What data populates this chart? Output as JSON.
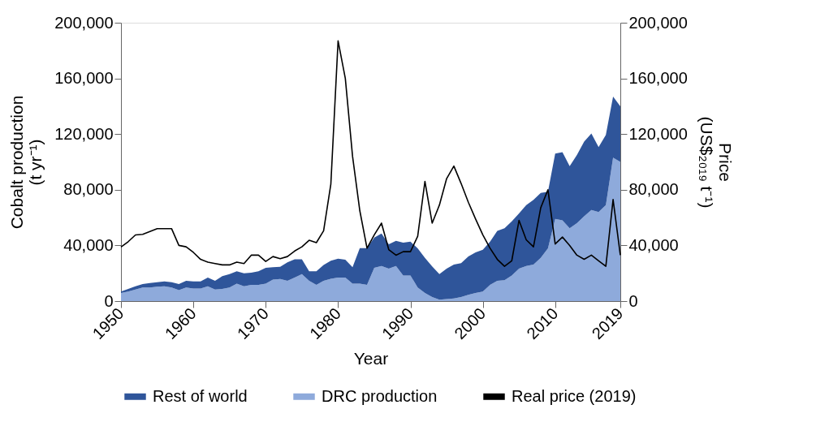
{
  "chart_data": {
    "type": "area",
    "stacked": true,
    "xlabel": "Year",
    "ylabel": "Cobalt production (t yr⁻¹)",
    "y2label": "Price (US$₂₀₁₉ t⁻¹)",
    "x": [
      1950,
      1951,
      1952,
      1953,
      1954,
      1955,
      1956,
      1957,
      1958,
      1959,
      1960,
      1961,
      1962,
      1963,
      1964,
      1965,
      1966,
      1967,
      1968,
      1969,
      1970,
      1971,
      1972,
      1973,
      1974,
      1975,
      1976,
      1977,
      1978,
      1979,
      1980,
      1981,
      1982,
      1983,
      1984,
      1985,
      1986,
      1987,
      1988,
      1989,
      1990,
      1991,
      1992,
      1993,
      1994,
      1995,
      1996,
      1997,
      1998,
      1999,
      2000,
      2001,
      2002,
      2003,
      2004,
      2005,
      2006,
      2007,
      2008,
      2009,
      2010,
      2011,
      2012,
      2013,
      2014,
      2015,
      2016,
      2017,
      2018,
      2019
    ],
    "series": [
      {
        "name": "DRC production",
        "color": "#8eaadb",
        "values": [
          5800,
          6800,
          8300,
          9700,
          9700,
          10300,
          10700,
          9700,
          7800,
          9700,
          9100,
          9100,
          10700,
          8300,
          8700,
          9700,
          12600,
          10700,
          11700,
          11700,
          12600,
          15500,
          15900,
          14600,
          16900,
          19400,
          14600,
          11700,
          14600,
          16100,
          16900,
          16900,
          12600,
          12600,
          11700,
          23900,
          25200,
          23300,
          25200,
          18400,
          18400,
          9700,
          5800,
          2900,
          1000,
          1400,
          1900,
          2900,
          4500,
          5800,
          6800,
          11700,
          14600,
          15000,
          18400,
          23300,
          25200,
          26200,
          31000,
          37900,
          59000,
          58000,
          52400,
          56000,
          61000,
          65400,
          64000,
          69000,
          103000,
          100000
        ]
      },
      {
        "name": "Rest of world",
        "color": "#2f559a",
        "values": [
          1000,
          1900,
          2400,
          2500,
          3300,
          3300,
          3500,
          3900,
          4400,
          4900,
          5100,
          5100,
          6200,
          6300,
          9300,
          9700,
          8800,
          9300,
          8700,
          9700,
          11300,
          8800,
          8800,
          13200,
          13100,
          10600,
          6800,
          9700,
          11400,
          12900,
          13600,
          12800,
          11700,
          25400,
          26300,
          21700,
          23300,
          17500,
          18100,
          23600,
          24300,
          28200,
          25200,
          22100,
          18400,
          21900,
          24300,
          24300,
          27500,
          29200,
          30100,
          31000,
          35900,
          37400,
          38900,
          39700,
          43800,
          46600,
          46700,
          40700,
          47000,
          49000,
          44600,
          49000,
          53600,
          55000,
          46700,
          50400,
          44000,
          40000
        ]
      },
      {
        "name": "Real price (2019)",
        "type": "line",
        "axis": "y2",
        "color": "#000000",
        "values": [
          38800,
          42700,
          47500,
          48000,
          50000,
          52000,
          52000,
          52000,
          40000,
          39000,
          35000,
          30000,
          28000,
          27000,
          26000,
          26000,
          28000,
          27000,
          33000,
          33000,
          28500,
          32000,
          30500,
          32000,
          36000,
          39000,
          43700,
          42000,
          50500,
          84000,
          187000,
          160000,
          104000,
          65000,
          38000,
          47600,
          56000,
          37000,
          33000,
          35500,
          35500,
          46600,
          86000,
          56000,
          69000,
          88000,
          97000,
          84500,
          71000,
          59000,
          47600,
          38000,
          30000,
          25000,
          29000,
          58000,
          44000,
          39000,
          67000,
          80000,
          41000,
          46000,
          40000,
          33000,
          30000,
          33000,
          29000,
          25000,
          73000,
          33000
        ]
      }
    ],
    "xlim": [
      1950,
      2019
    ],
    "xticks": [
      1950,
      1960,
      1970,
      1980,
      1990,
      2000,
      2010,
      2019
    ],
    "ylim": [
      0,
      200000
    ],
    "yticks": [
      0,
      {
        "value": 40000,
        "label": "40,000"
      },
      {
        "value": 80000,
        "label": "80,000"
      },
      {
        "value": 120000,
        "label": "120,000"
      },
      {
        "value": 160000,
        "label": "160,000"
      },
      {
        "value": 200000,
        "label": "200,000"
      }
    ],
    "y2lim": [
      0,
      200000
    ],
    "y2ticks": [
      0,
      {
        "value": 40000,
        "label": "40,000"
      },
      {
        "value": 80000,
        "label": "80,000"
      },
      {
        "value": 120000,
        "label": "120,000"
      },
      {
        "value": 160000,
        "label": "160,000"
      },
      {
        "value": 200000,
        "label": "200,000"
      }
    ],
    "legend": "bottom",
    "grid": false
  }
}
